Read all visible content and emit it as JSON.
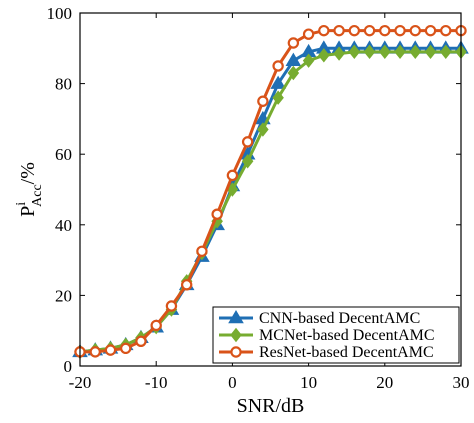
{
  "chart_data": {
    "type": "line",
    "xlabel": "SNR/dB",
    "ylabel": {
      "main": "P",
      "sup": "i",
      "sub": "Acc",
      "suffix": "/%"
    },
    "xlim": [
      -20,
      30
    ],
    "ylim": [
      0,
      100
    ],
    "xticks": [
      -20,
      -10,
      0,
      10,
      20,
      30
    ],
    "yticks": [
      0,
      20,
      40,
      60,
      80,
      100
    ],
    "grid": false,
    "legend_position": "bottom-right",
    "x": [
      -20,
      -18,
      -16,
      -14,
      -12,
      -10,
      -8,
      -6,
      -4,
      -2,
      0,
      2,
      4,
      6,
      8,
      10,
      12,
      14,
      16,
      18,
      20,
      22,
      24,
      26,
      28,
      30
    ],
    "series": [
      {
        "name": "CNN-based DecentAMC",
        "color": "#1F6FB4",
        "marker": "triangle",
        "values": [
          4,
          4.5,
          5,
          6,
          8,
          11,
          16,
          23,
          31,
          40,
          51,
          60,
          70,
          80,
          86.5,
          89,
          90,
          90,
          90,
          90,
          90,
          90,
          90,
          90,
          90,
          90
        ]
      },
      {
        "name": "MCNet-based DecentAMC",
        "color": "#77AC30",
        "marker": "diamond",
        "values": [
          4,
          4.5,
          5,
          6,
          8,
          11,
          16,
          24,
          32,
          41,
          50,
          58,
          67,
          76,
          83,
          86.5,
          88,
          88.5,
          89,
          89,
          89,
          89,
          89,
          89,
          89,
          89
        ]
      },
      {
        "name": "ResNet-based DecentAMC",
        "color": "#D95319",
        "marker": "circle",
        "values": [
          4,
          4,
          4.5,
          5,
          7,
          11.5,
          17,
          23,
          32.5,
          43,
          54,
          63.5,
          75,
          85,
          91.5,
          94,
          95,
          95,
          95,
          95,
          95,
          95,
          95,
          95,
          95,
          95
        ]
      }
    ]
  }
}
